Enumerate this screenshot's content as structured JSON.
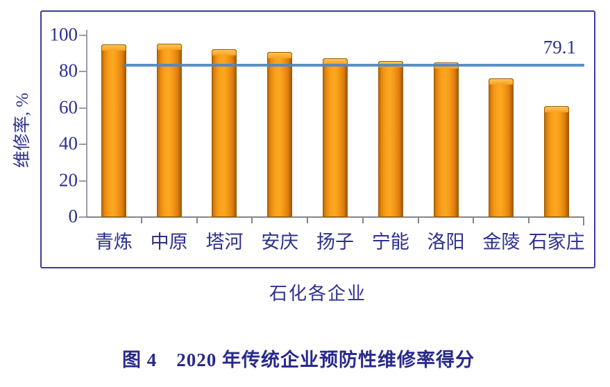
{
  "caption": "图 4　2020 年传统企业预防性维修率得分",
  "chart_data": {
    "type": "bar",
    "title": "",
    "categories": [
      "青炼",
      "中原",
      "塔河",
      "安庆",
      "扬子",
      "宁能",
      "洛阳",
      "金陵",
      "石家庄"
    ],
    "values": [
      95,
      95.5,
      92.5,
      91,
      87.5,
      86,
      85,
      76.5,
      61
    ],
    "xlabel": "石化各企业",
    "ylabel": "维修率, %",
    "ylim": [
      0,
      100
    ],
    "yticks": [
      0,
      20,
      40,
      60,
      80,
      100
    ],
    "grid": false,
    "legend": null,
    "reference_line": {
      "value": 79.1,
      "label": "79.1",
      "apparent_value": 83.6
    },
    "colors": {
      "bar": "#F9A01C",
      "bar_edge": "#9C5C06",
      "reference_line": "#4E86C2",
      "text": "#2D2F8F",
      "frame_border": "#3B3BA3",
      "axis": "#9B9BAD"
    }
  }
}
